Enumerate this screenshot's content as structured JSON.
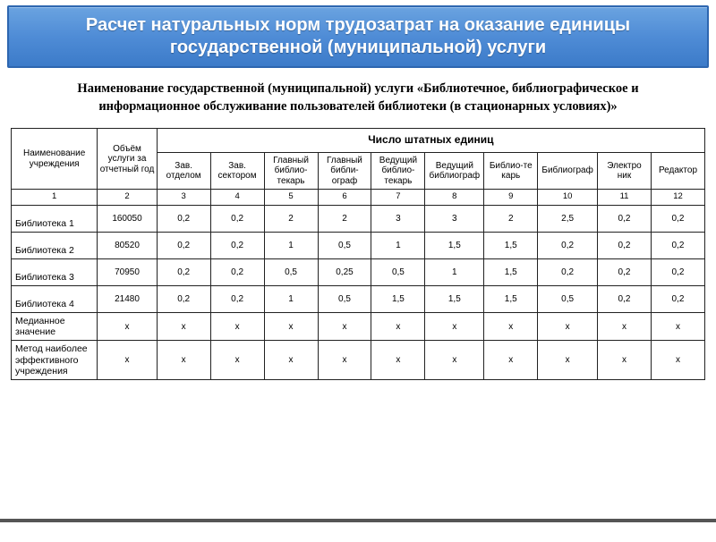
{
  "title": "Расчет натуральных норм трудозатрат на оказание единицы государственной (муниципальной) услуги",
  "subtitle": "Наименование государственной (муниципальной) услуги «Библиотечное, библиографическое и информационное обслуживание пользователей библиотеки (в стационарных условиях)»",
  "table": {
    "headers": {
      "name": "Наименование учреждения",
      "volume": "Объём услуги за отчетный год",
      "group": "Число штатных единиц",
      "cols": [
        "Зав. отделом",
        "Зав. сектором",
        "Главный библио-текарь",
        "Главный библи-ограф",
        "Ведущий библио-текарь",
        "Ведущий библиограф",
        "Библио-те карь",
        "Библиограф",
        "Электро ник",
        "Редактор"
      ]
    },
    "col_numbers": [
      "1",
      "2",
      "3",
      "4",
      "5",
      "6",
      "7",
      "8",
      "9",
      "10",
      "11",
      "12"
    ],
    "rows": [
      {
        "label": "Библиотека 1",
        "vol": "160050",
        "v": [
          "0,2",
          "0,2",
          "2",
          "2",
          "3",
          "3",
          "2",
          "2,5",
          "0,2",
          "0,2"
        ]
      },
      {
        "label": "Библиотека  2",
        "vol": "80520",
        "v": [
          "0,2",
          "0,2",
          "1",
          "0,5",
          "1",
          "1,5",
          "1,5",
          "0,2",
          "0,2",
          "0,2"
        ]
      },
      {
        "label": "Библиотека 3",
        "vol": "70950",
        "v": [
          "0,2",
          "0,2",
          "0,5",
          "0,25",
          "0,5",
          "1",
          "1,5",
          "0,2",
          "0,2",
          "0,2"
        ]
      },
      {
        "label": "Библиотека 4",
        "vol": "21480",
        "v": [
          "0,2",
          "0,2",
          "1",
          "0,5",
          "1,5",
          "1,5",
          "1,5",
          "0,5",
          "0,2",
          "0,2"
        ]
      },
      {
        "label": "Медианное значение",
        "vol": "x",
        "v": [
          "x",
          "x",
          "x",
          "x",
          "x",
          "x",
          "x",
          "x",
          "x",
          "x"
        ]
      },
      {
        "label": "Метод наиболее эффективного учреждения",
        "vol": "x",
        "v": [
          "x",
          "x",
          "x",
          "x",
          "x",
          "x",
          "x",
          "x",
          "x",
          "x"
        ]
      }
    ]
  },
  "colors": {
    "title_bg_top": "#6aa3e0",
    "title_bg_bottom": "#3c7bc9",
    "title_border": "#2d66b0",
    "title_text": "#ffffff",
    "border": "#222222",
    "footer_line": "#555555"
  }
}
